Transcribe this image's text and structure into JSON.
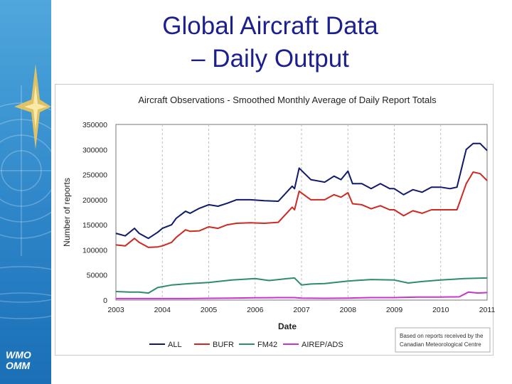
{
  "slide": {
    "title_line1": "Global Aircraft Data",
    "title_line2": "– Daily Output",
    "logo_line1": "WMO",
    "logo_line2": "OMM"
  },
  "chart_data": {
    "type": "line",
    "title": "Aircraft Observations - Smoothed Monthly  Average of Daily Report Totals",
    "xlabel": "Date",
    "ylabel": "Number of reports",
    "xlim": [
      2003,
      2011
    ],
    "ylim": [
      0,
      350000
    ],
    "x_ticks": [
      "2003",
      "2004",
      "2005",
      "2006",
      "2007",
      "2008",
      "2009",
      "2010",
      "2011"
    ],
    "y_ticks": [
      "0",
      "50000",
      "100000",
      "150000",
      "200000",
      "250000",
      "300000",
      "350000"
    ],
    "grid": "vertical dashed",
    "legend_position": "bottom",
    "note": "Based on reports received by the Canadian Meteorological Centre",
    "series": [
      {
        "name": "ALL",
        "color": "#101a6a",
        "x": [
          2003.0,
          2003.2,
          2003.4,
          2003.5,
          2003.7,
          2003.9,
          2004.0,
          2004.2,
          2004.3,
          2004.5,
          2004.6,
          2004.8,
          2005.0,
          2005.2,
          2005.4,
          2005.6,
          2005.9,
          2006.2,
          2006.5,
          2006.8,
          2006.85,
          2006.95,
          2007.2,
          2007.5,
          2007.7,
          2007.85,
          2008.0,
          2008.1,
          2008.3,
          2008.5,
          2008.7,
          2008.9,
          2009.0,
          2009.2,
          2009.4,
          2009.6,
          2009.8,
          2010.0,
          2010.2,
          2010.35,
          2010.55,
          2010.7,
          2010.85,
          2011.0
        ],
        "values": [
          133000,
          128000,
          143000,
          133000,
          123000,
          135000,
          143000,
          150000,
          163000,
          177000,
          173000,
          183000,
          190000,
          187000,
          193000,
          200000,
          200000,
          198000,
          197000,
          227000,
          222000,
          263000,
          240000,
          235000,
          247000,
          240000,
          257000,
          232000,
          232000,
          222000,
          232000,
          222000,
          222000,
          210000,
          220000,
          215000,
          225000,
          225000,
          222000,
          225000,
          300000,
          312000,
          312000,
          298000
        ]
      },
      {
        "name": "BUFR",
        "color": "#cc2a22",
        "x": [
          2003.0,
          2003.2,
          2003.4,
          2003.5,
          2003.7,
          2003.9,
          2004.0,
          2004.2,
          2004.3,
          2004.5,
          2004.6,
          2004.8,
          2005.0,
          2005.2,
          2005.4,
          2005.6,
          2005.9,
          2006.2,
          2006.5,
          2006.8,
          2006.85,
          2006.95,
          2007.2,
          2007.5,
          2007.7,
          2007.85,
          2008.0,
          2008.1,
          2008.3,
          2008.5,
          2008.7,
          2008.9,
          2009.0,
          2009.2,
          2009.4,
          2009.6,
          2009.8,
          2010.0,
          2010.2,
          2010.35,
          2010.55,
          2010.7,
          2010.85,
          2011.0
        ],
        "values": [
          110000,
          108000,
          123000,
          115000,
          105000,
          106000,
          108000,
          115000,
          125000,
          140000,
          137000,
          138000,
          146000,
          143000,
          150000,
          153000,
          154000,
          153000,
          155000,
          185000,
          180000,
          217000,
          200000,
          200000,
          210000,
          205000,
          214000,
          192000,
          190000,
          182000,
          188000,
          180000,
          180000,
          168000,
          178000,
          173000,
          180000,
          180000,
          180000,
          180000,
          232000,
          255000,
          252000,
          238000
        ]
      },
      {
        "name": "FM42",
        "color": "#2f8c6e",
        "x": [
          2003.0,
          2003.3,
          2003.5,
          2003.7,
          2003.9,
          2004.2,
          2004.6,
          2005.0,
          2005.5,
          2006.0,
          2006.3,
          2006.7,
          2006.85,
          2007.0,
          2007.2,
          2007.5,
          2008.0,
          2008.5,
          2009.0,
          2009.3,
          2009.6,
          2010.0,
          2010.5,
          2011.0
        ],
        "values": [
          17000,
          16000,
          16000,
          14000,
          25000,
          30000,
          33000,
          35000,
          40000,
          43000,
          39000,
          43000,
          44000,
          30000,
          32000,
          33000,
          38000,
          41000,
          40000,
          34000,
          37000,
          40000,
          43000,
          44000
        ]
      },
      {
        "name": "AIREP/ADS",
        "color": "#cc33cc",
        "x": [
          2003.0,
          2003.5,
          2004.0,
          2004.5,
          2005.0,
          2005.5,
          2006.0,
          2006.5,
          2006.85,
          2007.0,
          2007.5,
          2008.0,
          2008.5,
          2009.0,
          2009.5,
          2010.0,
          2010.4,
          2010.6,
          2010.8,
          2011.0
        ],
        "values": [
          3000,
          3000,
          3000,
          3000,
          3500,
          4000,
          4500,
          5000,
          5000,
          4000,
          3500,
          4000,
          5000,
          5000,
          6000,
          6000,
          6500,
          16000,
          14000,
          15000
        ]
      }
    ]
  }
}
